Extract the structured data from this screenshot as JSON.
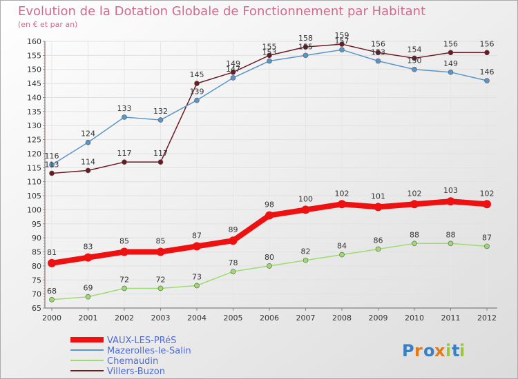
{
  "chart_data": {
    "type": "line",
    "title": "Evolution de la Dotation Globale de Fonctionnement par Habitant",
    "subtitle": "(en € et par an)",
    "xlabel": "",
    "ylabel": "",
    "ylim": [
      65,
      160
    ],
    "ytick_step": 5,
    "categories": [
      "2000",
      "2001",
      "2002",
      "2003",
      "2004",
      "2005",
      "2006",
      "2007",
      "2008",
      "2009",
      "2010",
      "2011",
      "2012"
    ],
    "series": [
      {
        "name": "Villers-Buzon",
        "color": "#6b1a24",
        "thick": false,
        "values": [
          113,
          114,
          117,
          117,
          145,
          149,
          155,
          158,
          159,
          156,
          154,
          156,
          156
        ]
      },
      {
        "name": "Mazerolles-le-Salin",
        "color": "#5b95c8",
        "thick": false,
        "values": [
          116,
          124,
          133,
          132,
          139,
          147,
          153,
          155,
          157,
          153,
          150,
          149,
          146
        ]
      },
      {
        "name": "Chemaudin",
        "color": "#9edb6e",
        "thick": false,
        "values": [
          68,
          69,
          72,
          72,
          73,
          78,
          80,
          82,
          84,
          86,
          88,
          88,
          87
        ]
      },
      {
        "name": "VAUX-LES-PRéS",
        "color": "#ee1111",
        "thick": true,
        "values": [
          81,
          83,
          85,
          85,
          87,
          89,
          98,
          100,
          102,
          101,
          102,
          103,
          102
        ]
      }
    ],
    "legend": [
      {
        "name": "VAUX-LES-PRéS",
        "color": "#ee1111",
        "thick": true
      },
      {
        "name": "Mazerolles-le-Salin",
        "color": "#5b95c8",
        "thick": false
      },
      {
        "name": "Chemaudin",
        "color": "#9edb6e",
        "thick": false
      },
      {
        "name": "Villers-Buzon",
        "color": "#6b1a24",
        "thick": false
      }
    ],
    "legend_position": "bottom-left"
  },
  "logo": {
    "letters": [
      "P",
      "r",
      "o",
      "x",
      "i",
      "t",
      "i"
    ],
    "colors": [
      "#3a7fc4",
      "#e07b1a",
      "#3a7fc4",
      "#e07b1a",
      "#9bc53d",
      "#3a7fc4",
      "#9bc53d"
    ]
  }
}
